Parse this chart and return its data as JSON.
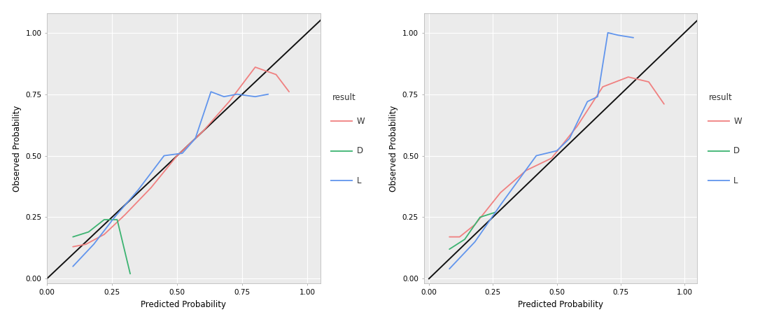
{
  "plot1": {
    "xlabel": "Predicted Probability",
    "ylabel": "Observed Probability",
    "xlim": [
      0.05,
      1.05
    ],
    "ylim": [
      -0.02,
      1.08
    ],
    "xticks": [
      0.0,
      0.25,
      0.5,
      0.75,
      1.0
    ],
    "yticks": [
      0.0,
      0.25,
      0.5,
      0.75,
      1.0
    ],
    "W": {
      "x": [
        0.1,
        0.15,
        0.22,
        0.3,
        0.4,
        0.5,
        0.6,
        0.7,
        0.8,
        0.88,
        0.93
      ],
      "y": [
        0.13,
        0.14,
        0.18,
        0.26,
        0.37,
        0.5,
        0.6,
        0.72,
        0.86,
        0.83,
        0.76
      ],
      "color": "#F08080"
    },
    "D": {
      "x": [
        0.1,
        0.16,
        0.22,
        0.27,
        0.32
      ],
      "y": [
        0.17,
        0.19,
        0.24,
        0.24,
        0.02
      ],
      "color": "#3CB371"
    },
    "L": {
      "x": [
        0.1,
        0.18,
        0.26,
        0.35,
        0.45,
        0.52,
        0.57,
        0.63,
        0.68,
        0.73,
        0.8,
        0.85
      ],
      "y": [
        0.05,
        0.14,
        0.25,
        0.36,
        0.5,
        0.51,
        0.57,
        0.76,
        0.74,
        0.75,
        0.74,
        0.75
      ],
      "color": "#6195ED"
    }
  },
  "plot2": {
    "xlabel": "Predicted Probability",
    "ylabel": "Observed Probability",
    "xlim": [
      -0.02,
      1.05
    ],
    "ylim": [
      -0.02,
      1.08
    ],
    "xticks": [
      0.0,
      0.25,
      0.5,
      0.75,
      1.0
    ],
    "yticks": [
      0.0,
      0.25,
      0.5,
      0.75,
      1.0
    ],
    "W": {
      "x": [
        0.08,
        0.12,
        0.18,
        0.28,
        0.38,
        0.48,
        0.58,
        0.68,
        0.78,
        0.86,
        0.92
      ],
      "y": [
        0.17,
        0.17,
        0.22,
        0.35,
        0.44,
        0.49,
        0.62,
        0.78,
        0.82,
        0.8,
        0.71
      ],
      "color": "#F08080"
    },
    "D": {
      "x": [
        0.08,
        0.14,
        0.2,
        0.26
      ],
      "y": [
        0.12,
        0.16,
        0.25,
        0.27
      ],
      "color": "#3CB371"
    },
    "L": {
      "x": [
        0.08,
        0.18,
        0.28,
        0.42,
        0.5,
        0.55,
        0.62,
        0.66,
        0.7,
        0.74,
        0.8
      ],
      "y": [
        0.04,
        0.15,
        0.3,
        0.5,
        0.52,
        0.57,
        0.72,
        0.74,
        1.0,
        0.99,
        0.98
      ],
      "color": "#6195ED"
    }
  },
  "diag_color": "#111111",
  "bg_color": "#ebebeb",
  "grid_color": "#ffffff",
  "legend_title": "result",
  "legend_items": [
    "W",
    "D",
    "L"
  ],
  "legend_colors": [
    "#F08080",
    "#3CB371",
    "#6195ED"
  ],
  "axis_label_fontsize": 8.5,
  "tick_fontsize": 7.5,
  "legend_title_fontsize": 8.5,
  "legend_fontsize": 8.5,
  "line_width": 1.3
}
